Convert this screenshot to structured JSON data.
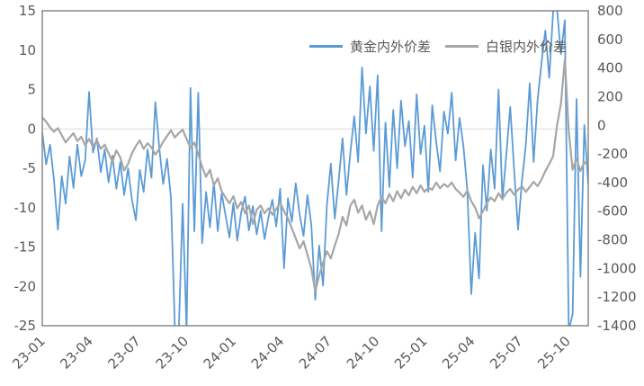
{
  "legend": {
    "items": [
      {
        "label": "黄金内外价差",
        "color": "#5B9BD5"
      },
      {
        "label": "白银内外价差",
        "color": "#A6A6A6"
      }
    ]
  },
  "chart_data": {
    "type": "line",
    "title": "",
    "legend_position": "top-center",
    "frame_color": "#7F7F7F",
    "text_color": "#595959",
    "zero_line_color": "#D9D9D9",
    "grid": "zero-line-only",
    "x_axis": {
      "tick_labels": [
        "23-01",
        "23-04",
        "23-07",
        "23-10",
        "24-01",
        "24-04",
        "24-07",
        "24-10",
        "25-01",
        "25-04",
        "25-07",
        "25-10"
      ],
      "tick_months": [
        0,
        3,
        6,
        9,
        12,
        15,
        18,
        21,
        24,
        27,
        30,
        33
      ],
      "span_months": 34.3
    },
    "y_axis_left": {
      "min": -25,
      "max": 15,
      "ticks": [
        15,
        10,
        5,
        0,
        -5,
        -10,
        -15,
        -20,
        -25
      ]
    },
    "y_axis_right": {
      "min": -1400,
      "max": 800,
      "ticks": [
        800,
        600,
        400,
        200,
        0,
        -200,
        -400,
        -600,
        -800,
        -1000,
        -1200,
        -1400
      ]
    },
    "series": [
      {
        "name": "黄金内外价差",
        "axis": "left",
        "color": "#5B9BD5",
        "stroke_width": 1.8,
        "values": [
          -0.5,
          -4.5,
          -2,
          -6.5,
          -12.8,
          -6,
          -9.5,
          -3.5,
          -7.5,
          -2,
          -6,
          -4,
          4.7,
          -3,
          -1.2,
          -5.5,
          -2.6,
          -6.8,
          -3.4,
          -7.6,
          -4.2,
          -8.4,
          -5,
          -9,
          -11.6,
          -5.2,
          -8,
          -2.6,
          -6.2,
          3.4,
          -2.4,
          -7,
          -3.8,
          -8.8,
          -25.3,
          -25.8,
          -9.5,
          -25.6,
          5.2,
          -13,
          4.6,
          -14.5,
          -8,
          -12.5,
          -6.8,
          -13,
          -8.2,
          -11,
          -13.8,
          -9.4,
          -14.2,
          -10.6,
          -8.6,
          -12.9,
          -9.8,
          -13.4,
          -10.4,
          -14,
          -11.2,
          -9,
          -12.4,
          -7.6,
          -17.7,
          -8.8,
          -11.8,
          -6.9,
          -10.9,
          -13.6,
          -8.4,
          -12.2,
          -21.7,
          -14.8,
          -19.9,
          -9.6,
          -4.4,
          -11.4,
          -6.6,
          -1.2,
          -8.4,
          -3,
          1.6,
          -4.2,
          7.8,
          -0.6,
          5.4,
          -2.8,
          6.8,
          -13,
          0.8,
          -7.4,
          2.4,
          -5,
          3.6,
          -2.2,
          1,
          -6.2,
          4.4,
          -3.2,
          0.4,
          -8,
          3,
          -1.6,
          -5.4,
          2.2,
          -0.6,
          4.6,
          -4,
          1.4,
          -2.2,
          -7.8,
          -21,
          -13.2,
          -19,
          -4.6,
          -10.4,
          -2.6,
          -7.6,
          5,
          -9,
          -3.2,
          2.8,
          -5.2,
          -12.8,
          -6.6,
          -2,
          5.8,
          -4.2,
          3.6,
          8.3,
          12.5,
          6.5,
          14.9,
          15.2,
          9.5,
          13.8,
          -25.6,
          -23.5,
          3.8,
          -18.8,
          0.5,
          -7
        ]
      },
      {
        "name": "白银内外价差",
        "axis": "right",
        "color": "#A6A6A6",
        "stroke_width": 2.2,
        "values": [
          55,
          25,
          -15,
          -45,
          -20,
          -70,
          -120,
          -85,
          -55,
          -110,
          -80,
          -140,
          -95,
          -150,
          -105,
          -165,
          -135,
          -195,
          -255,
          -175,
          -225,
          -315,
          -270,
          -195,
          -145,
          -105,
          -165,
          -125,
          -155,
          -205,
          -165,
          -115,
          -75,
          -35,
          -85,
          -55,
          -30,
          -95,
          -155,
          -120,
          -200,
          -290,
          -360,
          -310,
          -420,
          -370,
          -460,
          -505,
          -545,
          -495,
          -580,
          -535,
          -615,
          -560,
          -690,
          -590,
          -560,
          -615,
          -580,
          -625,
          -585,
          -540,
          -600,
          -650,
          -720,
          -790,
          -860,
          -810,
          -905,
          -1000,
          -1160,
          -1050,
          -960,
          -880,
          -930,
          -840,
          -760,
          -640,
          -700,
          -560,
          -520,
          -610,
          -560,
          -660,
          -600,
          -690,
          -560,
          -500,
          -545,
          -480,
          -530,
          -460,
          -510,
          -450,
          -490,
          -430,
          -475,
          -420,
          -465,
          -435,
          -450,
          -400,
          -440,
          -410,
          -430,
          -400,
          -445,
          -470,
          -500,
          -455,
          -530,
          -575,
          -650,
          -600,
          -545,
          -505,
          -530,
          -475,
          -515,
          -470,
          -445,
          -485,
          -450,
          -425,
          -465,
          -430,
          -395,
          -425,
          -380,
          -320,
          -270,
          -215,
          0,
          150,
          460,
          -40,
          -310,
          -230,
          -320,
          -255,
          -285
        ]
      }
    ]
  }
}
